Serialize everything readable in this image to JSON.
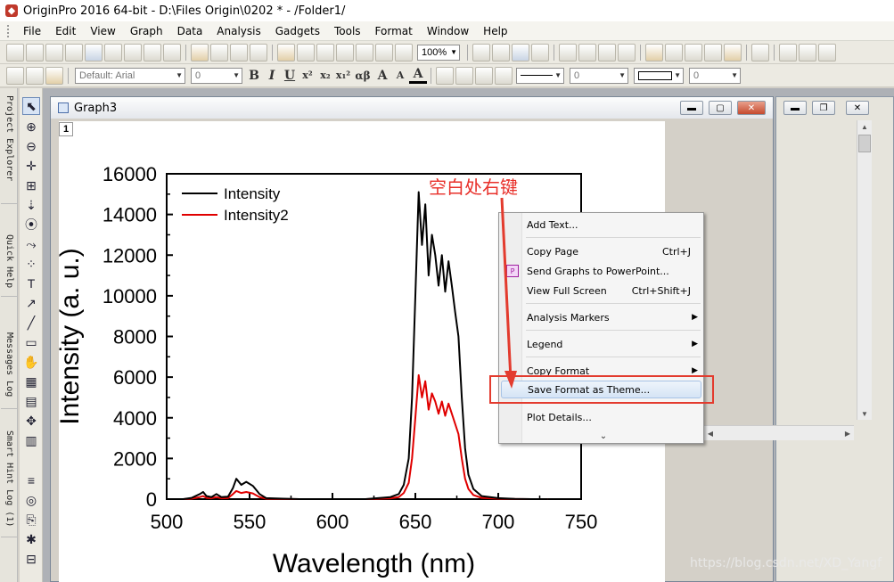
{
  "app": {
    "title": "OriginPro 2016 64-bit - D:\\Files Origin\\0202 * - /Folder1/"
  },
  "menubar": {
    "items": [
      "File",
      "Edit",
      "View",
      "Graph",
      "Data",
      "Analysis",
      "Gadgets",
      "Tools",
      "Format",
      "Window",
      "Help"
    ]
  },
  "toolbar": {
    "zoom_value": "100%",
    "font_value": "Default: Arial",
    "font_size_value": "0",
    "format_buttons": [
      "B",
      "I",
      "U",
      "x²",
      "x₂",
      "x₁²",
      "αβ",
      "A",
      "A",
      "A"
    ],
    "line_width_value": "0",
    "box_value": "0"
  },
  "dock": {
    "tabs": [
      "Project Explorer (1)",
      "Quick Help",
      "Messages Log",
      "Smart Hint Log (1)"
    ]
  },
  "graph_window": {
    "title": "Graph3",
    "layer_label": "1"
  },
  "chart_data": {
    "type": "line",
    "title": "",
    "xlabel": "Wavelength (nm)",
    "ylabel": "Intensity (a. u.)",
    "xlim": [
      500,
      750
    ],
    "ylim": [
      0,
      16000
    ],
    "xticks": [
      500,
      550,
      600,
      650,
      700,
      750
    ],
    "yticks": [
      0,
      2000,
      4000,
      6000,
      8000,
      10000,
      12000,
      14000,
      16000
    ],
    "legend_position": "top-left",
    "series": [
      {
        "name": "Intensity",
        "color": "#000000",
        "x": [
          500,
          510,
          515,
          520,
          522,
          524,
          527,
          530,
          533,
          537,
          540,
          542,
          545,
          548,
          552,
          556,
          560,
          570,
          580,
          600,
          620,
          635,
          640,
          643,
          646,
          648,
          650,
          652,
          654,
          656,
          658,
          660,
          662,
          664,
          666,
          668,
          670,
          672,
          674,
          676,
          678,
          680,
          682,
          685,
          690,
          700,
          710,
          720,
          730
        ],
        "y": [
          0,
          0,
          60,
          250,
          350,
          150,
          100,
          250,
          100,
          120,
          550,
          1000,
          700,
          850,
          650,
          250,
          50,
          20,
          0,
          0,
          0,
          100,
          250,
          700,
          2000,
          5000,
          10000,
          15100,
          12500,
          14500,
          11000,
          13000,
          12000,
          10500,
          12000,
          10200,
          11700,
          10500,
          9200,
          8000,
          5000,
          2500,
          1200,
          500,
          150,
          50,
          10,
          0,
          0
        ]
      },
      {
        "name": "Intensity2",
        "color": "#e00000",
        "x": [
          500,
          510,
          515,
          520,
          522,
          524,
          527,
          530,
          533,
          537,
          540,
          542,
          545,
          548,
          552,
          556,
          560,
          570,
          580,
          600,
          620,
          635,
          640,
          643,
          646,
          648,
          650,
          652,
          654,
          656,
          658,
          660,
          662,
          664,
          666,
          668,
          670,
          672,
          674,
          676,
          678,
          680,
          682,
          685,
          690,
          700,
          710,
          720,
          730
        ],
        "y": [
          0,
          0,
          20,
          100,
          150,
          60,
          40,
          100,
          40,
          50,
          250,
          400,
          300,
          350,
          280,
          100,
          20,
          8,
          0,
          0,
          0,
          40,
          100,
          300,
          800,
          2000,
          4000,
          6100,
          5000,
          5800,
          4400,
          5200,
          4800,
          4200,
          4800,
          4100,
          4700,
          4200,
          3700,
          3200,
          2000,
          1000,
          500,
          200,
          60,
          20,
          4,
          0,
          0
        ]
      }
    ]
  },
  "context_menu": {
    "items": [
      {
        "label": "Add Text...",
        "shortcut": ""
      },
      {
        "label": "Copy Page",
        "shortcut": "Ctrl+J"
      },
      {
        "label": "Send Graphs to PowerPoint...",
        "shortcut": ""
      },
      {
        "label": "View Full Screen",
        "shortcut": "Ctrl+Shift+J"
      },
      {
        "label": "Analysis Markers",
        "shortcut": ""
      },
      {
        "label": "Legend",
        "shortcut": ""
      },
      {
        "label": "Copy Format",
        "shortcut": ""
      },
      {
        "label": "Save Format as Theme...",
        "shortcut": ""
      },
      {
        "label": "Plot Details...",
        "shortcut": ""
      }
    ]
  },
  "annotation": {
    "text": "空白处右键",
    "color": "#e8302a"
  },
  "watermark": "https://blog.csdn.net/XD_Yangf"
}
